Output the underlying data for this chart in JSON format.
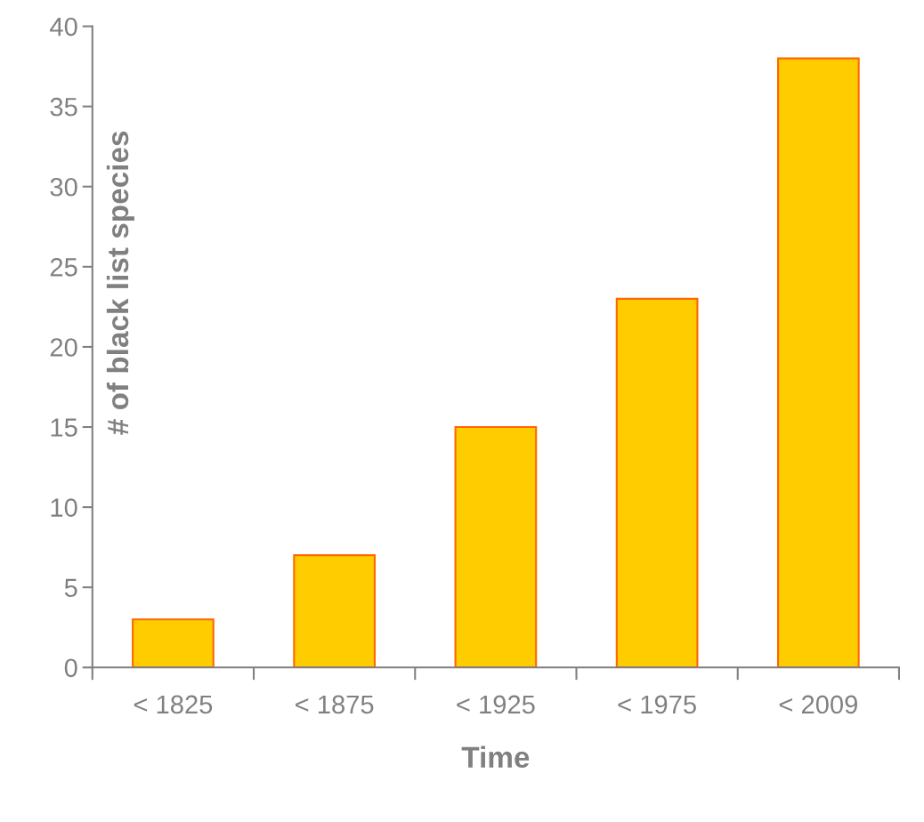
{
  "chart_data": {
    "type": "bar",
    "xlabel": "Time",
    "ylabel": "# of black list species",
    "categories": [
      "< 1825",
      "< 1875",
      "< 1925",
      "< 1975",
      "< 2009"
    ],
    "values": [
      3,
      7,
      15,
      23,
      38
    ],
    "color": "#ffcc00",
    "ylim": [
      0,
      40
    ],
    "yticks": [
      0,
      5,
      10,
      15,
      20,
      25,
      30,
      35,
      40
    ],
    "grid": false,
    "legend": false
  }
}
